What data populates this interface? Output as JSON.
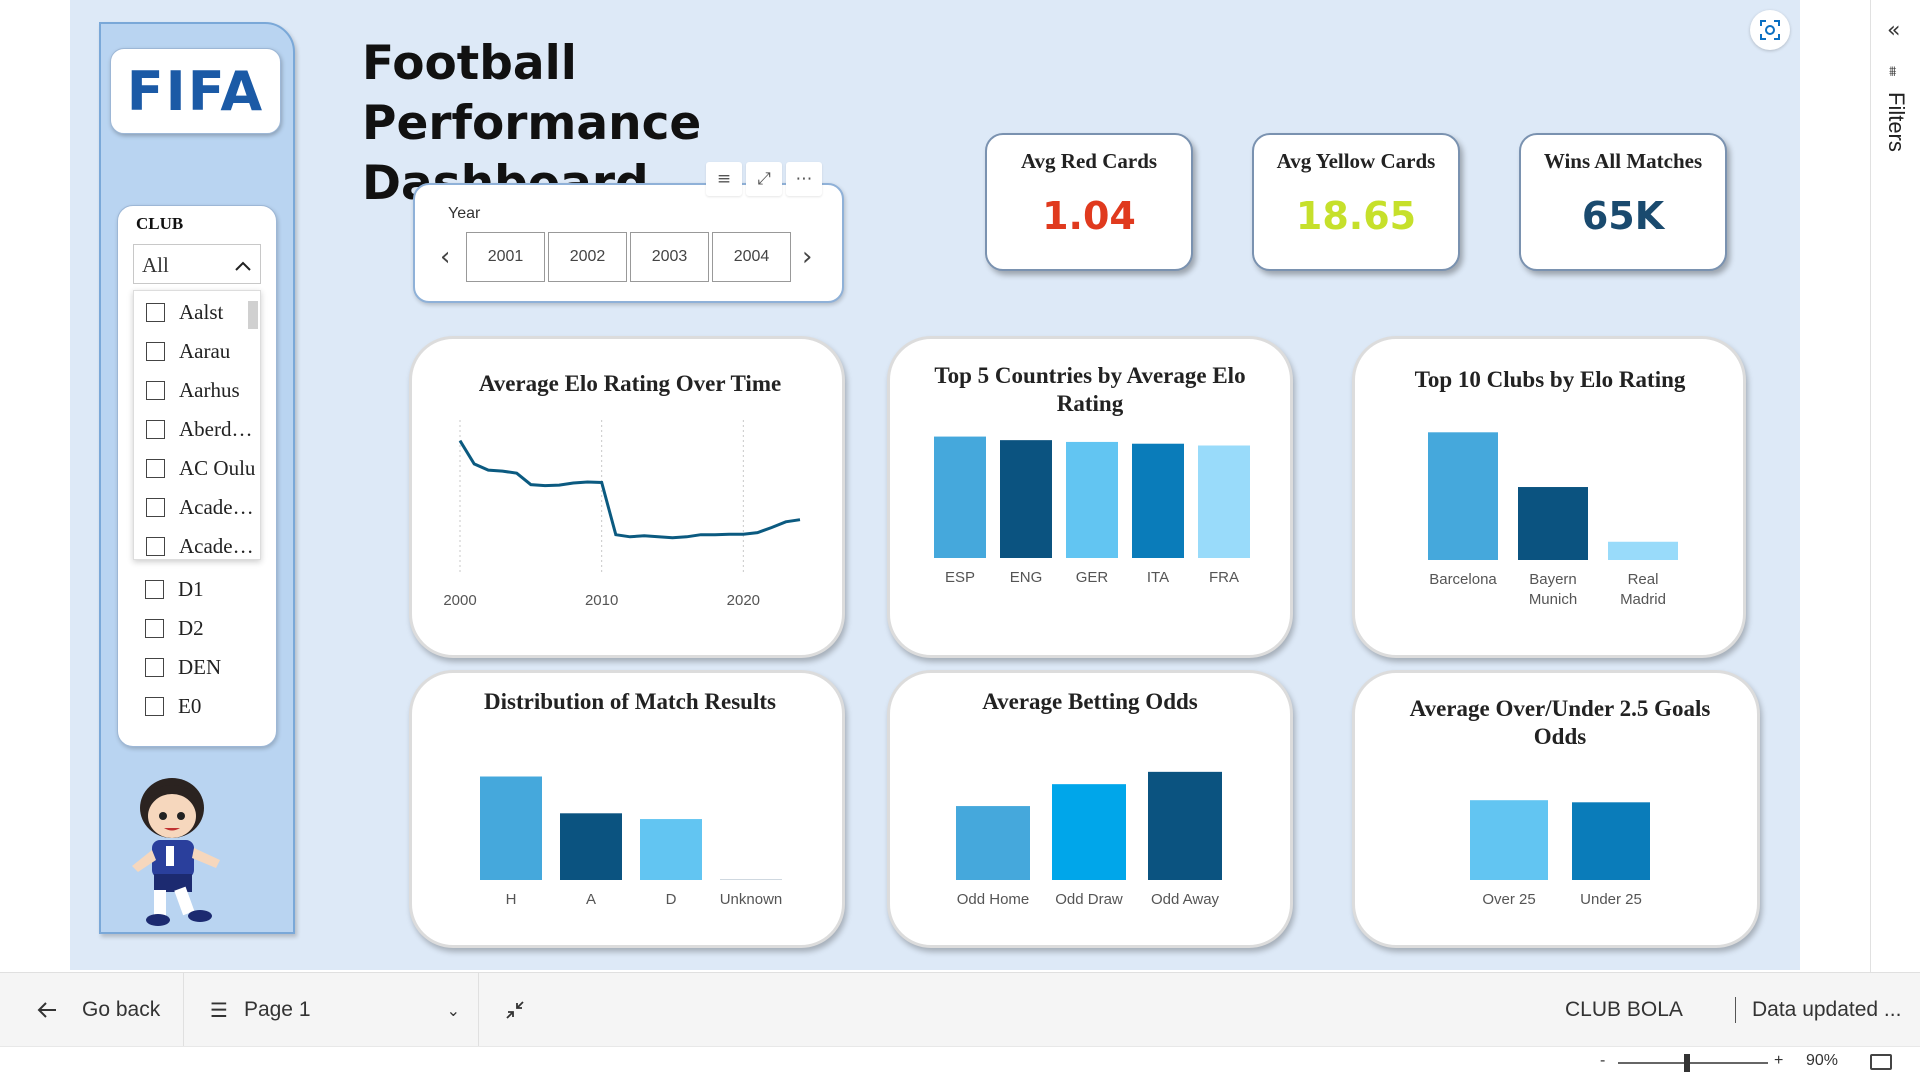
{
  "header": {
    "title": "Football Performance Dashboard"
  },
  "logo": {
    "text": "FIFA"
  },
  "club_slicer": {
    "title": "CLUB",
    "selected": "All",
    "options": [
      "Aalst",
      "Aarau",
      "Aarhus",
      "Aberd…",
      "AC Oulu",
      "Acade…",
      "Acade…"
    ],
    "options_lower": [
      "D1",
      "D2",
      "DEN",
      "E0"
    ]
  },
  "year_slicer": {
    "label": "Year",
    "years": [
      "2001",
      "2002",
      "2003",
      "2004"
    ]
  },
  "kpis": [
    {
      "title": "Avg Red Cards",
      "value": "1.04",
      "color": "#e03a1e"
    },
    {
      "title": "Avg Yellow Cards",
      "value": "18.65",
      "color": "#c6e02b"
    },
    {
      "title": "Wins All Matches",
      "value": "65K",
      "color": "#1a4a6e"
    }
  ],
  "chart_data": [
    {
      "type": "line",
      "title": "Average Elo Rating Over Time",
      "x_ticks": [
        "2000",
        "2010",
        "2020"
      ],
      "xlim": [
        2000,
        2024
      ],
      "ylim": [
        1400,
        1700
      ],
      "series": [
        {
          "color": "#0b5a80",
          "points": [
            [
              2000,
              1660
            ],
            [
              2001,
              1615
            ],
            [
              2002,
              1603
            ],
            [
              2003,
              1601
            ],
            [
              2004,
              1597
            ],
            [
              2005,
              1575
            ],
            [
              2006,
              1573
            ],
            [
              2007,
              1574
            ],
            [
              2008,
              1578
            ],
            [
              2009,
              1580
            ],
            [
              2010,
              1579
            ],
            [
              2011,
              1478
            ],
            [
              2012,
              1474
            ],
            [
              2013,
              1476
            ],
            [
              2014,
              1474
            ],
            [
              2015,
              1472
            ],
            [
              2016,
              1474
            ],
            [
              2017,
              1478
            ],
            [
              2018,
              1478
            ],
            [
              2019,
              1479
            ],
            [
              2020,
              1479
            ],
            [
              2021,
              1482
            ],
            [
              2022,
              1492
            ],
            [
              2023,
              1503
            ],
            [
              2024,
              1507
            ]
          ]
        }
      ]
    },
    {
      "type": "bar",
      "title": "Top 5 Countries by Average Elo Rating",
      "categories": [
        "ESP",
        "ENG",
        "GER",
        "ITA",
        "FRA"
      ],
      "values": [
        1640,
        1630,
        1625,
        1620,
        1615
      ],
      "colors": [
        "#45a8dc",
        "#0b5380",
        "#62c5f2",
        "#0a7cba",
        "#99dbfa"
      ],
      "ylim": [
        1300,
        1650
      ]
    },
    {
      "type": "bar",
      "title": "Top 10 Clubs by Elo Rating",
      "categories": [
        "Barcelona",
        "Bayern Munich",
        "Real Madrid"
      ],
      "values": [
        1950,
        1935,
        1920
      ],
      "colors": [
        "#45a8dc",
        "#0b5380",
        "#99dbfa"
      ],
      "ylim": [
        1915,
        1952
      ]
    },
    {
      "type": "bar",
      "title": "Distribution of Match Results",
      "categories": [
        "H",
        "A",
        "D",
        "Unknown"
      ],
      "values": [
        45000,
        29000,
        26500,
        0
      ],
      "colors": [
        "#45a8dc",
        "#0b5380",
        "#62c5f2",
        "#cfd8e0"
      ],
      "ylim": [
        0,
        50000
      ]
    },
    {
      "type": "bar",
      "title": "Average Betting Odds",
      "categories": [
        "Odd Home",
        "Odd Draw",
        "Odd Away"
      ],
      "values": [
        2.7,
        3.5,
        3.95
      ],
      "colors": [
        "#45a8dc",
        "#00a6ea",
        "#0b5380"
      ],
      "ylim": [
        0,
        4.2
      ]
    },
    {
      "type": "bar",
      "title": "Average Over/Under 2.5 Goals Odds",
      "categories": [
        "Over 25",
        "Under 25"
      ],
      "values": [
        1.9,
        1.85
      ],
      "colors": [
        "#62c5f2",
        "#0a7cba"
      ],
      "ylim": [
        0,
        2.5
      ]
    }
  ],
  "bottom_bar": {
    "back_label": "Go back",
    "page_label": "Page 1",
    "report_name": "CLUB BOLA",
    "data_updated": "Data updated ..."
  },
  "status_bar": {
    "zoom": "90%",
    "minus": "-",
    "plus": "+"
  },
  "filters_pane": {
    "label": "Filters"
  }
}
